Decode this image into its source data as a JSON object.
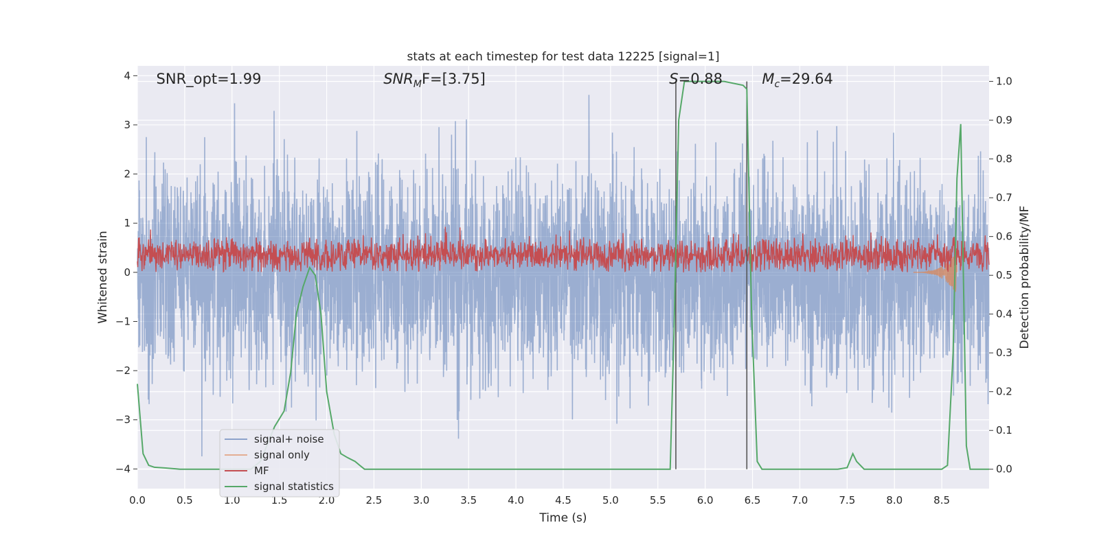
{
  "chart_data": {
    "type": "line",
    "title": "stats at each timestep for test data 12225 [signal=1]",
    "xlabel": "Time (s)",
    "ylabel": "Whitened strain",
    "ylabel_right": "Detection probability/MF",
    "xlim": [
      0.0,
      9.0
    ],
    "ylim": [
      -4.4,
      4.2
    ],
    "ylim_right": [
      -0.05,
      1.04
    ],
    "xticks": [
      "0.0",
      "0.5",
      "1.0",
      "1.5",
      "2.0",
      "2.5",
      "3.0",
      "3.5",
      "4.0",
      "4.5",
      "5.0",
      "5.5",
      "6.0",
      "6.5",
      "7.0",
      "7.5",
      "8.0",
      "8.5"
    ],
    "yticks": [
      "4",
      "3",
      "2",
      "1",
      "0",
      "−1",
      "−2",
      "−3",
      "−4"
    ],
    "yticks_right": [
      "1.0",
      "0.9",
      "0.8",
      "0.7",
      "0.6",
      "0.5",
      "0.4",
      "0.3",
      "0.2",
      "0.1",
      "0.0"
    ],
    "grid": true,
    "legend_position": "lower-left",
    "colors": {
      "signal_noise": "#4c72b0",
      "signal_only": "#dd8452",
      "mf": "#c44e52",
      "stats": "#55a868",
      "vlines": "#555555",
      "background": "#eaeaf2"
    },
    "annotations": [
      {
        "text": "SNR_opt=1.99",
        "x": 0.2
      },
      {
        "base": "SNR",
        "sub": "M",
        "rest": "F=[3.75]",
        "x": 2.6
      },
      {
        "base": "S",
        "sub": "",
        "rest": "=0.88",
        "x": 5.62
      },
      {
        "base": "M",
        "sub": "c",
        "rest": "=29.64",
        "x": 6.6
      }
    ],
    "vlines_x": [
      5.69,
      6.44
    ],
    "series": [
      {
        "name": "signal+ noise",
        "axis": "left",
        "kind": "noise",
        "sample_rate_hz": 2048,
        "std": 1.0,
        "x_range": [
          0.0,
          9.0
        ]
      },
      {
        "name": "signal only",
        "axis": "left",
        "kind": "chirp",
        "x_range": [
          8.2,
          8.66
        ],
        "peak_amplitude": 0.45
      },
      {
        "name": "MF",
        "axis": "left",
        "kind": "mf",
        "x_range": [
          0.0,
          9.0
        ],
        "range": [
          0.0,
          1.0
        ]
      },
      {
        "name": "signal statistics",
        "axis": "right",
        "x": [
          0.0,
          0.06,
          0.12,
          0.18,
          0.3,
          0.45,
          0.6,
          0.75,
          0.9,
          1.05,
          1.2,
          1.3,
          1.45,
          1.55,
          1.62,
          1.68,
          1.75,
          1.82,
          1.88,
          1.94,
          2.0,
          2.08,
          2.15,
          2.22,
          2.3,
          2.35,
          2.4,
          2.5,
          3.0,
          3.5,
          4.0,
          4.5,
          5.0,
          5.5,
          5.63,
          5.67,
          5.72,
          5.78,
          6.0,
          6.2,
          6.4,
          6.44,
          6.49,
          6.55,
          6.6,
          6.8,
          7.0,
          7.2,
          7.4,
          7.5,
          7.56,
          7.6,
          7.68,
          7.8,
          8.0,
          8.3,
          8.5,
          8.56,
          8.62,
          8.66,
          8.7,
          8.76,
          8.8,
          8.86,
          9.0
        ],
        "y": [
          0.22,
          0.04,
          0.01,
          0.005,
          0.003,
          0.0,
          0.0,
          0.0,
          0.0,
          0.0,
          0.0,
          0.02,
          0.11,
          0.15,
          0.25,
          0.4,
          0.47,
          0.52,
          0.5,
          0.4,
          0.2,
          0.09,
          0.04,
          0.03,
          0.02,
          0.01,
          0.0,
          0.0,
          0.0,
          0.0,
          0.0,
          0.0,
          0.0,
          0.0,
          0.0,
          0.35,
          0.9,
          1.0,
          1.0,
          1.0,
          0.99,
          0.98,
          0.4,
          0.02,
          0.0,
          0.0,
          0.0,
          0.0,
          0.0,
          0.004,
          0.04,
          0.02,
          0.0,
          0.0,
          0.0,
          0.0,
          0.0,
          0.01,
          0.3,
          0.75,
          0.89,
          0.06,
          0.0,
          0.0,
          0.0
        ]
      }
    ]
  }
}
